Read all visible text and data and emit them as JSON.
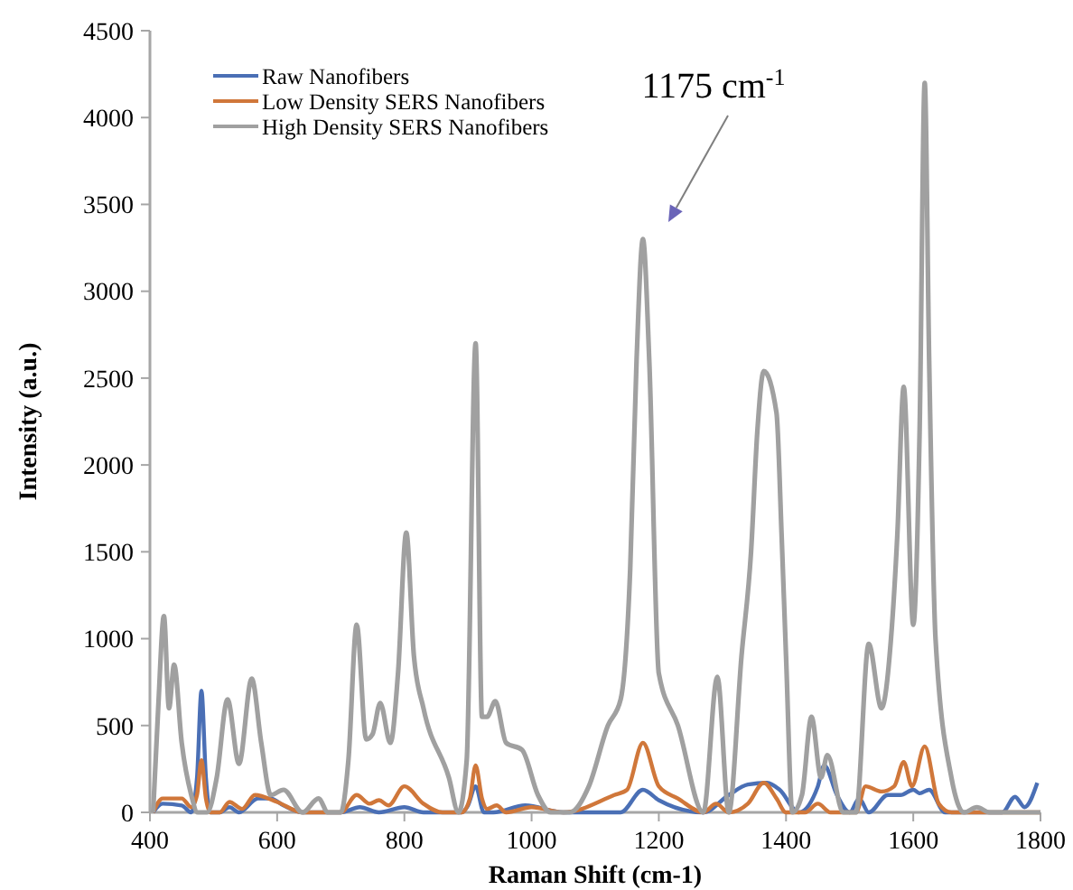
{
  "chart_data": {
    "type": "line",
    "xlabel": "Raman Shift (cm-1)",
    "ylabel": "Intensity (a.u.)",
    "xlim": [
      400,
      1800
    ],
    "xticks": [
      400,
      600,
      800,
      1000,
      1200,
      1400,
      1600,
      1800
    ],
    "ylim": [
      0,
      4500
    ],
    "yticks": [
      0,
      500,
      1000,
      1500,
      2000,
      2500,
      3000,
      3500,
      4000,
      4500
    ],
    "grid": false,
    "legend": "top left",
    "marker": "none",
    "line_style": "solid",
    "annotations": [
      "1175 cm$^{-1}$"
    ],
    "series": [
      {
        "name": "Raw Nanofibers",
        "color": "#4a6fb5",
        "x": [
          405,
          420,
          450,
          465,
          474,
          481,
          488,
          495,
          510,
          525,
          540,
          570,
          590,
          610,
          640,
          700,
          730,
          760,
          800,
          830,
          890,
          900,
          912,
          925,
          940,
          990,
          1050,
          1140,
          1175,
          1200,
          1270,
          1310,
          1340,
          1370,
          1390,
          1420,
          1450,
          1460,
          1480,
          1500,
          1515,
          1530,
          1560,
          1580,
          1600,
          1610,
          1625,
          1650,
          1740,
          1760,
          1775,
          1795
        ],
        "values": [
          0,
          50,
          40,
          0,
          200,
          700,
          200,
          0,
          0,
          30,
          0,
          80,
          80,
          40,
          0,
          0,
          30,
          0,
          30,
          0,
          0,
          40,
          150,
          0,
          0,
          40,
          0,
          0,
          130,
          70,
          0,
          100,
          160,
          170,
          130,
          0,
          150,
          270,
          100,
          0,
          80,
          0,
          100,
          100,
          130,
          110,
          130,
          0,
          0,
          90,
          30,
          170
        ]
      },
      {
        "name": "Low Density SERS Nanofibers",
        "color": "#d0773a",
        "x": [
          405,
          420,
          450,
          465,
          474,
          481,
          488,
          495,
          510,
          525,
          545,
          565,
          600,
          640,
          700,
          725,
          745,
          760,
          775,
          800,
          830,
          860,
          890,
          903,
          912,
          922,
          930,
          945,
          960,
          1000,
          1050,
          1130,
          1150,
          1175,
          1200,
          1230,
          1270,
          1290,
          1310,
          1340,
          1365,
          1385,
          1400,
          1430,
          1450,
          1470,
          1510,
          1525,
          1550,
          1570,
          1585,
          1598,
          1618,
          1640,
          1660,
          1800
        ],
        "values": [
          0,
          80,
          80,
          30,
          100,
          300,
          80,
          0,
          0,
          60,
          20,
          100,
          60,
          0,
          0,
          100,
          50,
          70,
          40,
          150,
          50,
          0,
          0,
          80,
          270,
          80,
          20,
          40,
          0,
          30,
          0,
          100,
          130,
          400,
          150,
          80,
          0,
          50,
          0,
          50,
          170,
          80,
          0,
          0,
          50,
          0,
          0,
          150,
          120,
          150,
          290,
          150,
          380,
          50,
          0,
          0
        ]
      },
      {
        "name": "High Density SERS Nanofibers",
        "color": "#a0a0a0",
        "x": [
          405,
          413,
          422,
          430,
          438,
          450,
          465,
          475,
          490,
          505,
          522,
          540,
          560,
          575,
          590,
          610,
          640,
          665,
          680,
          700,
          712,
          725,
          740,
          750,
          762,
          778,
          790,
          803,
          815,
          830,
          870,
          885,
          898,
          912,
          922,
          930,
          943,
          960,
          985,
          1010,
          1030,
          1060,
          1090,
          1120,
          1140,
          1155,
          1165,
          1175,
          1185,
          1200,
          1230,
          1270,
          1292,
          1310,
          1330,
          1345,
          1355,
          1365,
          1385,
          1393,
          1400,
          1410,
          1425,
          1440,
          1455,
          1465,
          1490,
          1510,
          1530,
          1550,
          1565,
          1575,
          1585,
          1600,
          1610,
          1618,
          1625,
          1635,
          1660,
          1680,
          1700,
          1720,
          1800
        ],
        "values": [
          0,
          600,
          1130,
          600,
          850,
          400,
          100,
          0,
          0,
          200,
          650,
          280,
          770,
          400,
          100,
          130,
          0,
          80,
          0,
          0,
          300,
          1080,
          420,
          450,
          630,
          400,
          800,
          1610,
          900,
          600,
          200,
          0,
          300,
          2700,
          550,
          550,
          640,
          400,
          360,
          100,
          0,
          0,
          150,
          500,
          650,
          1400,
          2600,
          3300,
          2600,
          800,
          500,
          0,
          780,
          0,
          900,
          1500,
          2200,
          2540,
          2300,
          1600,
          900,
          0,
          100,
          550,
          200,
          330,
          0,
          0,
          970,
          600,
          1000,
          1600,
          2450,
          1080,
          2200,
          4200,
          2600,
          1000,
          200,
          0,
          30,
          0,
          0
        ]
      }
    ]
  }
}
